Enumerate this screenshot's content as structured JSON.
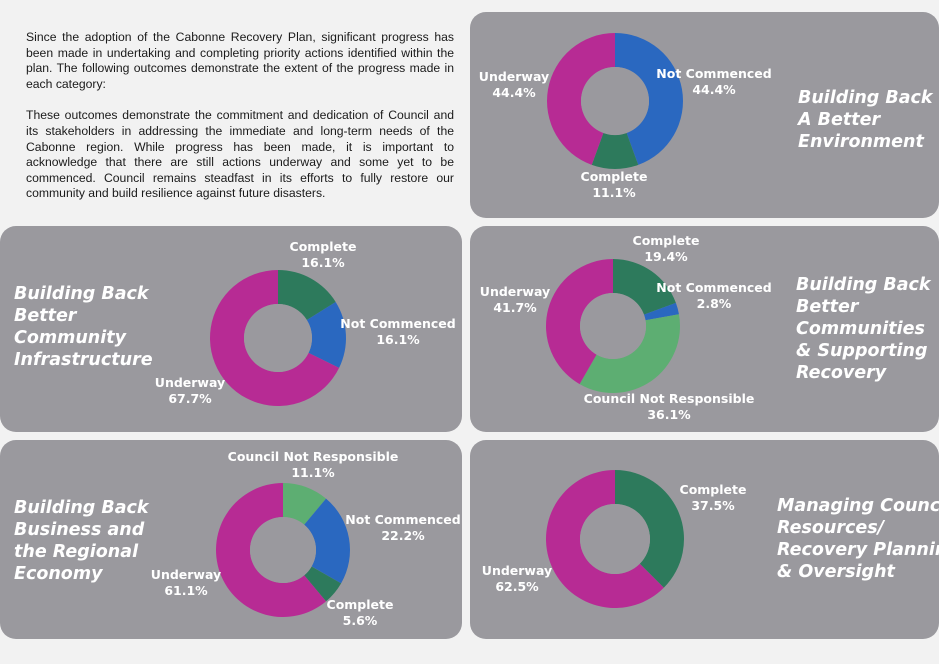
{
  "intro": {
    "paragraph1": "Since the adoption of the Cabonne Recovery Plan, significant progress has been made in undertaking and completing priority actions identified within the plan. The following outcomes demonstrate the extent of the progress made in each category:",
    "paragraph2": "These outcomes demonstrate the commitment and dedication of Council and its stakeholders in addressing the immediate and long-term needs of the Cabonne region. While progress has been made, it is important to acknowledge that there are still actions underway and some yet to be commenced. Council remains steadfast in its efforts to fully restore our community and build resilience against future disasters."
  },
  "colors": {
    "complete": "#2d7a5c",
    "not_commenced": "#2a68c0",
    "underway": "#b72b94",
    "council_not_responsible": "#5dae72",
    "panel_bg": "#9a999e",
    "label": "#ffffff"
  },
  "chart_data": [
    {
      "type": "pie",
      "title_lines": [
        "Building Back",
        "A Better",
        "Environment"
      ],
      "slices": [
        {
          "key": "not_commenced",
          "name": "Not Commenced",
          "pct_label": "44.4%",
          "value": 44.4
        },
        {
          "key": "complete",
          "name": "Complete",
          "pct_label": "11.1%",
          "value": 11.1
        },
        {
          "key": "underway",
          "name": "Underway",
          "pct_label": "44.4%",
          "value": 44.4
        }
      ]
    },
    {
      "type": "pie",
      "title_lines": [
        "Building Back",
        "Better",
        "Community",
        "Infrastructure"
      ],
      "slices": [
        {
          "key": "complete",
          "name": "Complete",
          "pct_label": "16.1%",
          "value": 16.1
        },
        {
          "key": "not_commenced",
          "name": "Not Commenced",
          "pct_label": "16.1%",
          "value": 16.1
        },
        {
          "key": "underway",
          "name": "Underway",
          "pct_label": "67.7%",
          "value": 67.7
        }
      ]
    },
    {
      "type": "pie",
      "title_lines": [
        "Building Back",
        "Better",
        "Communities",
        "& Supporting",
        "Recovery"
      ],
      "slices": [
        {
          "key": "complete",
          "name": "Complete",
          "pct_label": "19.4%",
          "value": 19.4
        },
        {
          "key": "not_commenced",
          "name": "Not Commenced",
          "pct_label": "2.8%",
          "value": 2.8
        },
        {
          "key": "council_not_responsible",
          "name": "Council Not Responsible",
          "pct_label": "36.1%",
          "value": 36.1
        },
        {
          "key": "underway",
          "name": "Underway",
          "pct_label": "41.7%",
          "value": 41.7
        }
      ]
    },
    {
      "type": "pie",
      "title_lines": [
        "Building Back",
        "Business and",
        "the Regional",
        "Economy"
      ],
      "slices": [
        {
          "key": "council_not_responsible",
          "name": "Council Not Responsible",
          "pct_label": "11.1%",
          "value": 11.1
        },
        {
          "key": "not_commenced",
          "name": "Not Commenced",
          "pct_label": "22.2%",
          "value": 22.2
        },
        {
          "key": "complete",
          "name": "Complete",
          "pct_label": "5.6%",
          "value": 5.6
        },
        {
          "key": "underway",
          "name": "Underway",
          "pct_label": "61.1%",
          "value": 61.1
        }
      ]
    },
    {
      "type": "pie",
      "title_lines": [
        "Managing Council",
        "Resources/",
        "Recovery Planning",
        "& Oversight"
      ],
      "slices": [
        {
          "key": "complete",
          "name": "Complete",
          "pct_label": "37.5%",
          "value": 37.5
        },
        {
          "key": "underway",
          "name": "Underway",
          "pct_label": "62.5%",
          "value": 62.5
        }
      ]
    }
  ]
}
